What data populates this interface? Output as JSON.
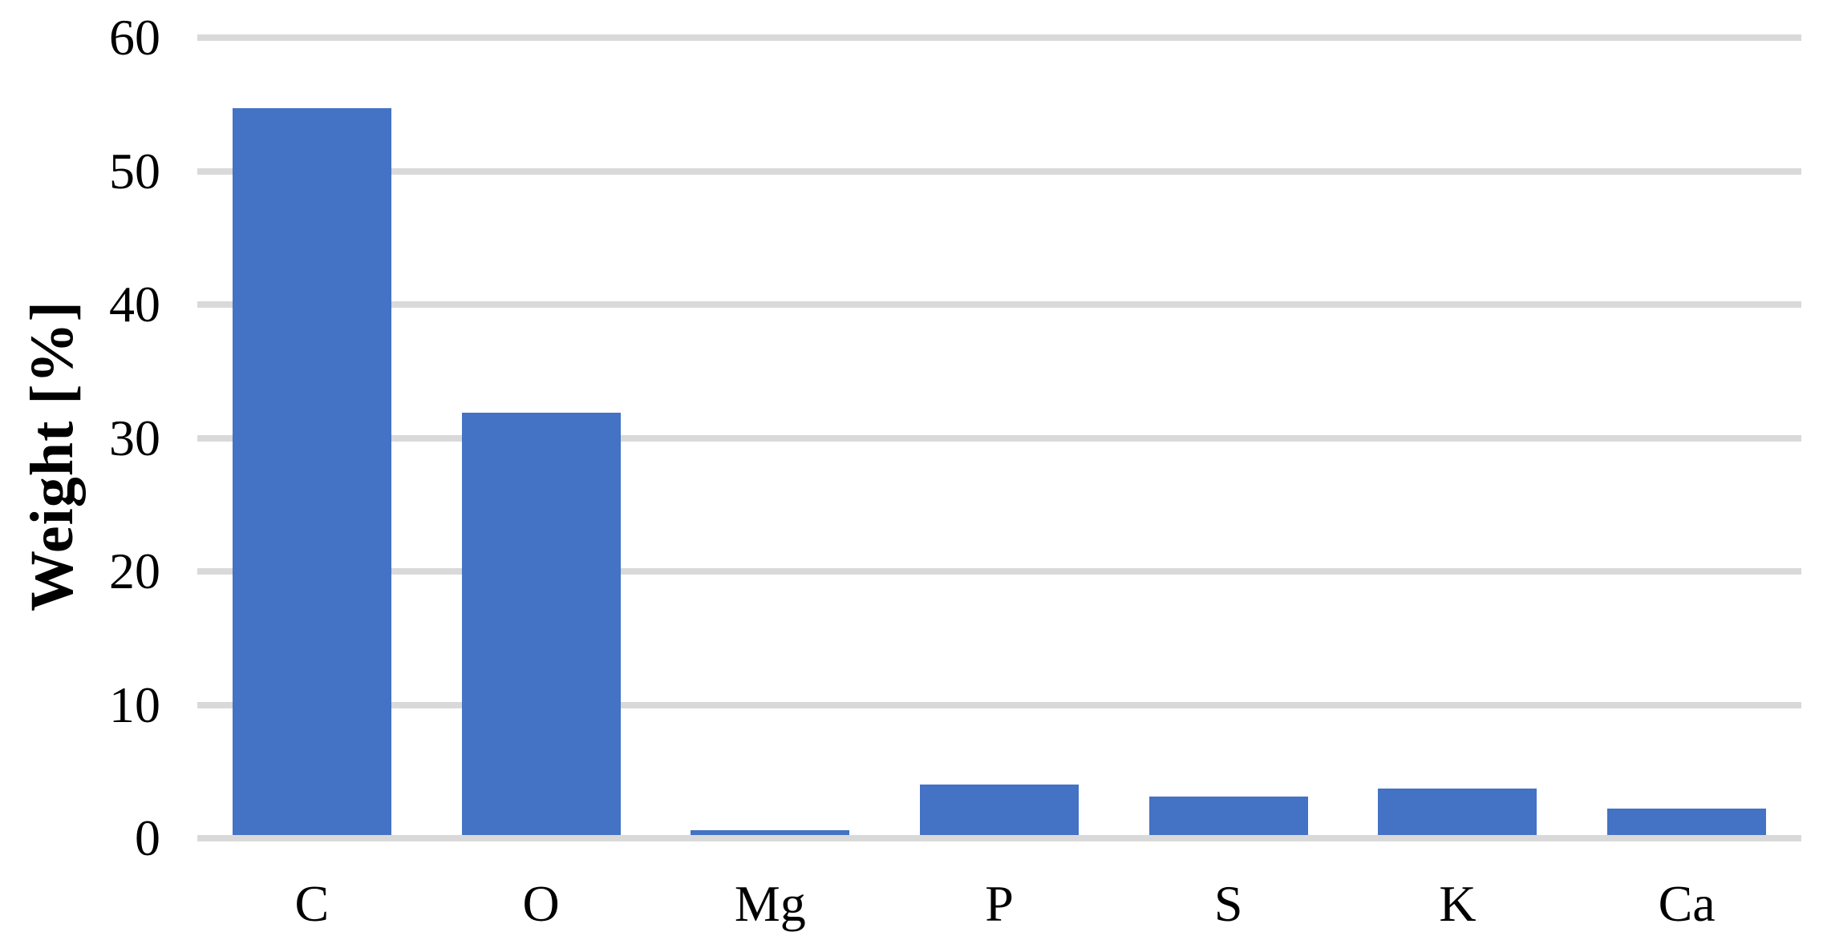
{
  "chart_data": {
    "type": "bar",
    "title": "",
    "xlabel": "",
    "ylabel": "Weight [%]",
    "categories": [
      "C",
      "O",
      "Mg",
      "P",
      "S",
      "K",
      "Ca"
    ],
    "values": [
      54.7,
      31.9,
      0.6,
      4.0,
      3.1,
      3.7,
      2.2
    ],
    "ylim": [
      0,
      60
    ],
    "yticks": [
      0,
      10,
      20,
      30,
      40,
      50,
      60
    ],
    "grid": true,
    "legend": "none",
    "bar_color": "#4472C4",
    "gridline_color": "#D9D9D9",
    "text_color": "#000000"
  }
}
